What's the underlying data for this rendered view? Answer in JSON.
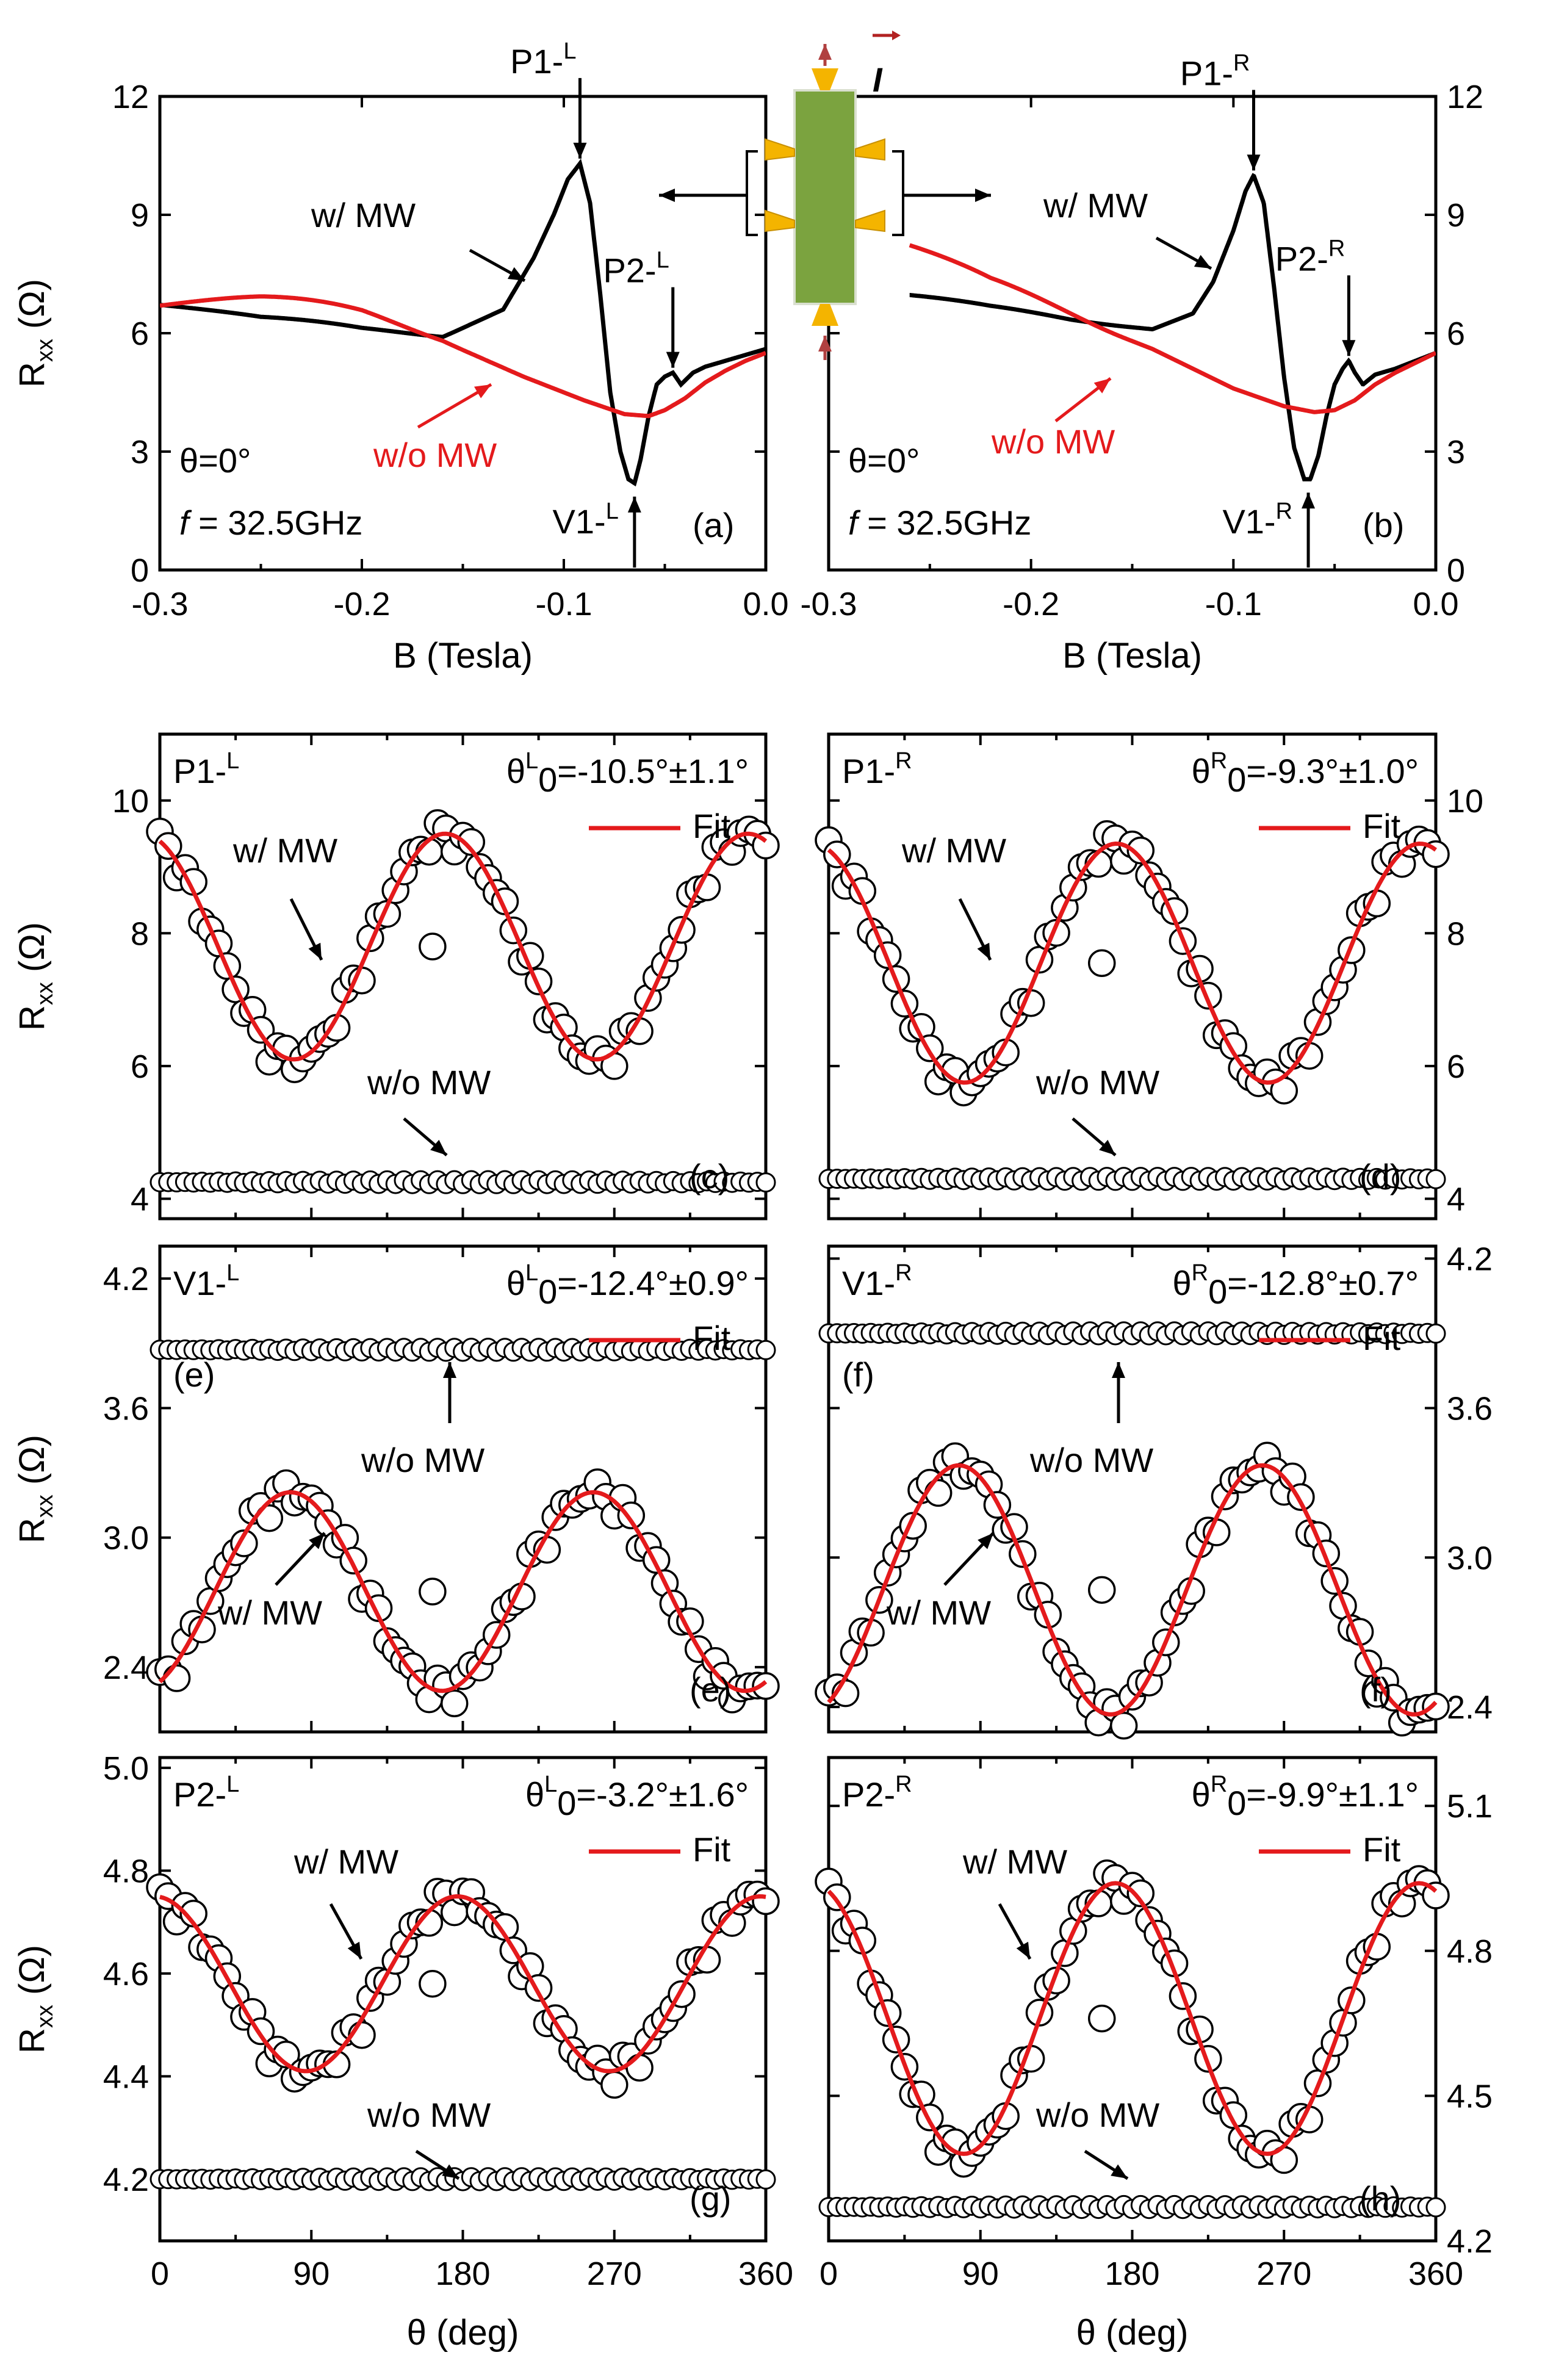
{
  "colors": {
    "mw": "#000000",
    "nomw": "#e41a1c",
    "fit": "#e41a1c",
    "marker_fill": "#ffffff"
  },
  "inset": {
    "current_label": "I",
    "icon": "hall-bar-device-icon"
  },
  "chart_data": [
    {
      "id": "a",
      "type": "line",
      "tag": "(a)",
      "xlabel": "B (Tesla)",
      "ylabel": "R",
      "ylabel_sub": "xx",
      "ylabel_unit": "(Ω)",
      "xlim": [
        -0.3,
        0.0
      ],
      "ylim": [
        0,
        12
      ],
      "xticks": [
        -0.3,
        -0.2,
        -0.1,
        0.0
      ],
      "xtick_labels": [
        "-0.3",
        "-0.2",
        "-0.1",
        "0.0"
      ],
      "yticks": [
        0,
        3,
        6,
        9,
        12
      ],
      "ytick_labels": [
        "0",
        "3",
        "6",
        "9",
        "12"
      ],
      "theta_text": "θ=0°",
      "freq_italic": "f",
      "freq_text": " = 32.5GHz",
      "mw_label": "w/ MW",
      "nomw_label": "w/o MW",
      "peaks": [
        {
          "label": "P1-",
          "sup": "L",
          "x": -0.092,
          "y": 10.3,
          "dir": "down"
        },
        {
          "label": "P2-",
          "sup": "L",
          "x": -0.046,
          "y": 5.0,
          "dir": "down"
        },
        {
          "label": "V1-",
          "sup": "L",
          "x": -0.065,
          "y": 2.2,
          "dir": "up"
        }
      ],
      "series": [
        {
          "name": "w/ MW",
          "color": "#000000",
          "x": [
            -0.3,
            -0.25,
            -0.2,
            -0.16,
            -0.13,
            -0.115,
            -0.105,
            -0.098,
            -0.092,
            -0.087,
            -0.082,
            -0.077,
            -0.072,
            -0.068,
            -0.065,
            -0.062,
            -0.058,
            -0.054,
            -0.05,
            -0.046,
            -0.042,
            -0.036,
            -0.03,
            -0.02,
            -0.01,
            0.0
          ],
          "y": [
            7.0,
            6.4,
            6.05,
            5.9,
            6.6,
            7.9,
            9.0,
            9.9,
            10.3,
            9.3,
            7.0,
            4.5,
            3.0,
            2.3,
            2.2,
            2.8,
            3.9,
            4.7,
            4.9,
            5.0,
            4.7,
            5.0,
            5.15,
            5.3,
            5.45,
            5.6
          ]
        },
        {
          "name": "w/o MW",
          "color": "#e41a1c",
          "x": [
            -0.3,
            -0.25,
            -0.2,
            -0.16,
            -0.12,
            -0.09,
            -0.07,
            -0.058,
            -0.05,
            -0.04,
            -0.03,
            -0.02,
            -0.01,
            0.0
          ],
          "y": [
            7.3,
            6.9,
            6.4,
            5.8,
            4.9,
            4.3,
            3.95,
            3.9,
            4.05,
            4.35,
            4.75,
            5.05,
            5.3,
            5.5
          ]
        }
      ]
    },
    {
      "id": "b",
      "type": "line",
      "tag": "(b)",
      "xlabel": "B (Tesla)",
      "xlim": [
        -0.3,
        0.0
      ],
      "ylim": [
        0,
        12
      ],
      "xticks": [
        -0.3,
        -0.2,
        -0.1,
        0.0
      ],
      "xtick_labels": [
        "-0.3",
        "-0.2",
        "-0.1",
        "0.0"
      ],
      "yticks": [
        0,
        3,
        6,
        9,
        12
      ],
      "ytick_labels": [
        "0",
        "3",
        "6",
        "9",
        "12"
      ],
      "theta_text": "θ=0°",
      "freq_italic": "f",
      "freq_text": " = 32.5GHz",
      "mw_label": "w/ MW",
      "nomw_label": "w/o MW",
      "peaks": [
        {
          "label": "P1-",
          "sup": "R",
          "x": -0.09,
          "y": 10.0,
          "dir": "down"
        },
        {
          "label": "P2-",
          "sup": "R",
          "x": -0.043,
          "y": 5.3,
          "dir": "down"
        },
        {
          "label": "V1-",
          "sup": "R",
          "x": -0.063,
          "y": 2.3,
          "dir": "up"
        }
      ],
      "series": [
        {
          "name": "w/ MW",
          "color": "#000000",
          "x": [
            -0.26,
            -0.22,
            -0.18,
            -0.14,
            -0.12,
            -0.11,
            -0.1,
            -0.094,
            -0.09,
            -0.085,
            -0.08,
            -0.075,
            -0.07,
            -0.065,
            -0.062,
            -0.058,
            -0.054,
            -0.05,
            -0.046,
            -0.043,
            -0.04,
            -0.036,
            -0.03,
            -0.02,
            -0.01,
            0.0
          ],
          "y": [
            7.0,
            6.6,
            6.3,
            6.1,
            6.5,
            7.3,
            8.6,
            9.6,
            10.0,
            9.3,
            7.2,
            4.9,
            3.1,
            2.3,
            2.3,
            2.9,
            3.9,
            4.7,
            5.1,
            5.3,
            5.0,
            4.7,
            4.95,
            5.1,
            5.3,
            5.5
          ]
        },
        {
          "name": "w/o MW",
          "color": "#e41a1c",
          "x": [
            -0.26,
            -0.22,
            -0.18,
            -0.14,
            -0.1,
            -0.075,
            -0.06,
            -0.05,
            -0.04,
            -0.03,
            -0.02,
            -0.01,
            0.0
          ],
          "y": [
            8.3,
            7.2,
            6.4,
            5.6,
            4.6,
            4.15,
            4.0,
            4.05,
            4.3,
            4.7,
            5.0,
            5.25,
            5.5
          ]
        }
      ]
    },
    {
      "id": "c",
      "type": "scatter",
      "tag": "(c)",
      "side": "L",
      "xlim": [
        0,
        360
      ],
      "ylim": [
        3.7,
        11.0
      ],
      "yticks": [
        4,
        6,
        8,
        10
      ],
      "ytick_labels": [
        "4",
        "6",
        "8",
        "10"
      ],
      "peak_label": "P1-",
      "peak_sup": "L",
      "theta0_label": "θ",
      "theta0_sub": "0",
      "theta0_sup": "L",
      "theta0_value": "=-10.5°±1.1°",
      "fit_label": "Fit",
      "mw_label": "w/ MW",
      "nomw_label": "w/o MW",
      "fit": {
        "offset": 7.8,
        "amplitude": 1.7,
        "theta0": -10.5
      },
      "nomw_level": 4.25
    },
    {
      "id": "d",
      "type": "scatter",
      "tag": "(d)",
      "side": "R",
      "xlim": [
        0,
        360
      ],
      "ylim": [
        3.7,
        11.0
      ],
      "yticks": [
        4,
        6,
        8,
        10
      ],
      "ytick_labels": [
        "4",
        "6",
        "8",
        "10"
      ],
      "peak_label": "P1-",
      "peak_sup": "R",
      "theta0_label": "θ",
      "theta0_sub": "0",
      "theta0_sup": "R",
      "theta0_value": "=-9.3°±1.0°",
      "fit_label": "Fit",
      "mw_label": "w/ MW",
      "nomw_label": "w/o MW",
      "fit": {
        "offset": 7.55,
        "amplitude": 1.8,
        "theta0": -9.3
      },
      "nomw_level": 4.3
    },
    {
      "id": "e",
      "type": "scatter",
      "tag": "(e)",
      "side": "L",
      "xlim": [
        0,
        360
      ],
      "ylim": [
        2.1,
        4.35
      ],
      "yticks": [
        2.4,
        3.0,
        3.6,
        4.2
      ],
      "ytick_labels": [
        "2.4",
        "3.0",
        "3.6",
        "4.2"
      ],
      "peak_label": "V1-",
      "peak_sup": "L",
      "theta0_label": "θ",
      "theta0_sub": "0",
      "theta0_sup": "L",
      "theta0_value": "=-12.4°±0.9°",
      "fit_label": "Fit",
      "mw_label": "w/ MW",
      "nomw_label": "w/o MW",
      "fit": {
        "offset": 2.75,
        "amplitude": -0.46,
        "theta0": -12.4
      },
      "nomw_level": 3.87
    },
    {
      "id": "f",
      "type": "scatter",
      "tag": "(f)",
      "side": "R",
      "xlim": [
        0,
        360
      ],
      "ylim": [
        2.3,
        4.25
      ],
      "yticks": [
        2.4,
        3.0,
        3.6,
        4.2
      ],
      "ytick_labels": [
        "2.4",
        "3.0",
        "3.6",
        "4.2"
      ],
      "peak_label": "V1-",
      "peak_sup": "R",
      "theta0_label": "θ",
      "theta0_sub": "0",
      "theta0_sup": "R",
      "theta0_value": "=-12.8°±0.7°",
      "fit_label": "Fit",
      "mw_label": "w/ MW",
      "nomw_label": "w/o MW",
      "fit": {
        "offset": 2.87,
        "amplitude": -0.5,
        "theta0": -12.8
      },
      "nomw_level": 3.9
    },
    {
      "id": "g",
      "type": "scatter",
      "tag": "(g)",
      "side": "L",
      "xlim": [
        0,
        360
      ],
      "ylim": [
        4.08,
        5.02
      ],
      "yticks": [
        4.2,
        4.4,
        4.6,
        4.8,
        5.0
      ],
      "ytick_labels": [
        "4.2",
        "4.4",
        "4.6",
        "4.8",
        "5.0"
      ],
      "xticks": [
        0,
        90,
        180,
        270,
        360
      ],
      "xtick_labels": [
        "0",
        "90",
        "180",
        "270",
        "360"
      ],
      "xlabel": "θ (deg)",
      "peak_label": "P2-",
      "peak_sup": "L",
      "theta0_label": "θ",
      "theta0_sub": "0",
      "theta0_sup": "L",
      "theta0_value": "=-3.2°±1.6°",
      "fit_label": "Fit",
      "mw_label": "w/ MW",
      "nomw_label": "w/o MW",
      "fit": {
        "offset": 4.58,
        "amplitude": 0.17,
        "theta0": -3.2
      },
      "nomw_level": 4.2
    },
    {
      "id": "h",
      "type": "scatter",
      "tag": "(h)",
      "side": "R",
      "xlim": [
        0,
        360
      ],
      "ylim": [
        4.2,
        5.2
      ],
      "yticks": [
        4.2,
        4.5,
        4.8,
        5.1
      ],
      "ytick_labels": [
        "4.2",
        "4.5",
        "4.8",
        "5.1"
      ],
      "xticks": [
        0,
        90,
        180,
        270,
        360
      ],
      "xtick_labels": [
        "0",
        "90",
        "180",
        "270",
        "360"
      ],
      "xlabel": "θ (deg)",
      "peak_label": "P2-",
      "peak_sup": "R",
      "theta0_label": "θ",
      "theta0_sub": "0",
      "theta0_sup": "R",
      "theta0_value": "=-9.9°±1.1°",
      "fit_label": "Fit",
      "mw_label": "w/ MW",
      "nomw_label": "w/o MW",
      "fit": {
        "offset": 4.66,
        "amplitude": 0.28,
        "theta0": -9.9
      },
      "nomw_level": 4.27
    }
  ],
  "shared_ylabel": {
    "main": "R",
    "sub": "xx",
    "unit": "(Ω)"
  }
}
